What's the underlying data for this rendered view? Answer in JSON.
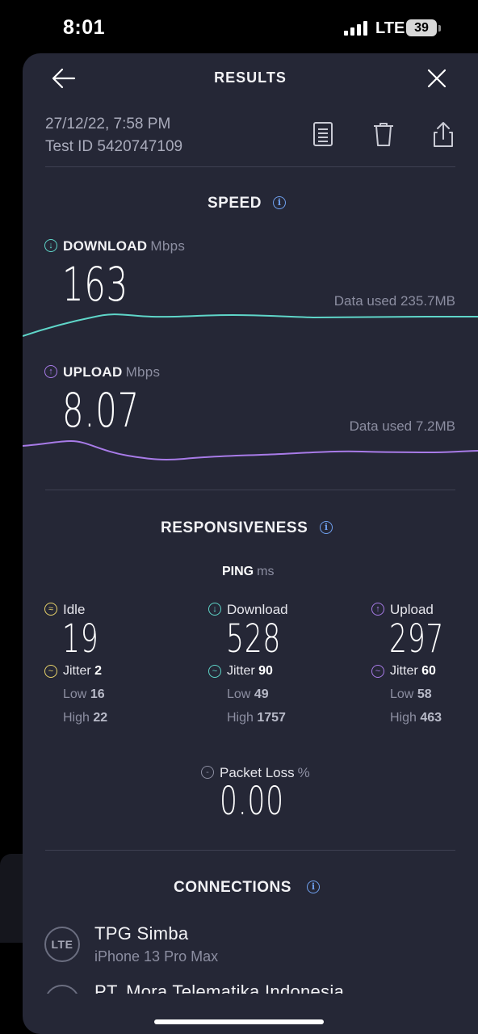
{
  "status_bar": {
    "time": "8:01",
    "carrier": "LTE",
    "battery": "39"
  },
  "header": {
    "title": "RESULTS",
    "back_icon": "arrow-left-icon",
    "close_icon": "close-icon"
  },
  "meta": {
    "datetime": "27/12/22, 7:58 PM",
    "test_id": "Test ID 5420747109",
    "actions": [
      "results-detail-icon",
      "trash-icon",
      "share-icon"
    ]
  },
  "speed": {
    "title": "SPEED",
    "download": {
      "label": "DOWNLOAD",
      "unit": "Mbps",
      "value": "163",
      "data_used": "Data used 235.7MB",
      "color": "#5fd6c9"
    },
    "upload": {
      "label": "UPLOAD",
      "unit": "Mbps",
      "value": "8.07",
      "data_used": "Data used 7.2MB",
      "color": "#a87be8"
    }
  },
  "responsiveness": {
    "title": "RESPONSIVENESS",
    "ping_label": "PING",
    "ping_unit": "ms",
    "idle": {
      "label": "Idle",
      "value": "19",
      "jitter_label": "Jitter",
      "jitter": "2",
      "low_label": "Low",
      "low": "16",
      "high_label": "High",
      "high": "22",
      "color": "#e8d36a"
    },
    "download": {
      "label": "Download",
      "value": "528",
      "jitter_label": "Jitter",
      "jitter": "90",
      "low_label": "Low",
      "low": "49",
      "high_label": "High",
      "high": "1757",
      "color": "#5fd6c9"
    },
    "upload": {
      "label": "Upload",
      "value": "297",
      "jitter_label": "Jitter",
      "jitter": "60",
      "low_label": "Low",
      "low": "58",
      "high_label": "High",
      "high": "463",
      "color": "#a87be8"
    },
    "packet_loss": {
      "label": "Packet Loss",
      "unit": "%",
      "value": "0.00"
    }
  },
  "connections": {
    "title": "CONNECTIONS",
    "items": [
      {
        "badge": "LTE",
        "name": "TPG Simba",
        "device": "iPhone 13 Pro Max"
      },
      {
        "name": "PT. Mora Telematika Indonesia"
      }
    ]
  }
}
